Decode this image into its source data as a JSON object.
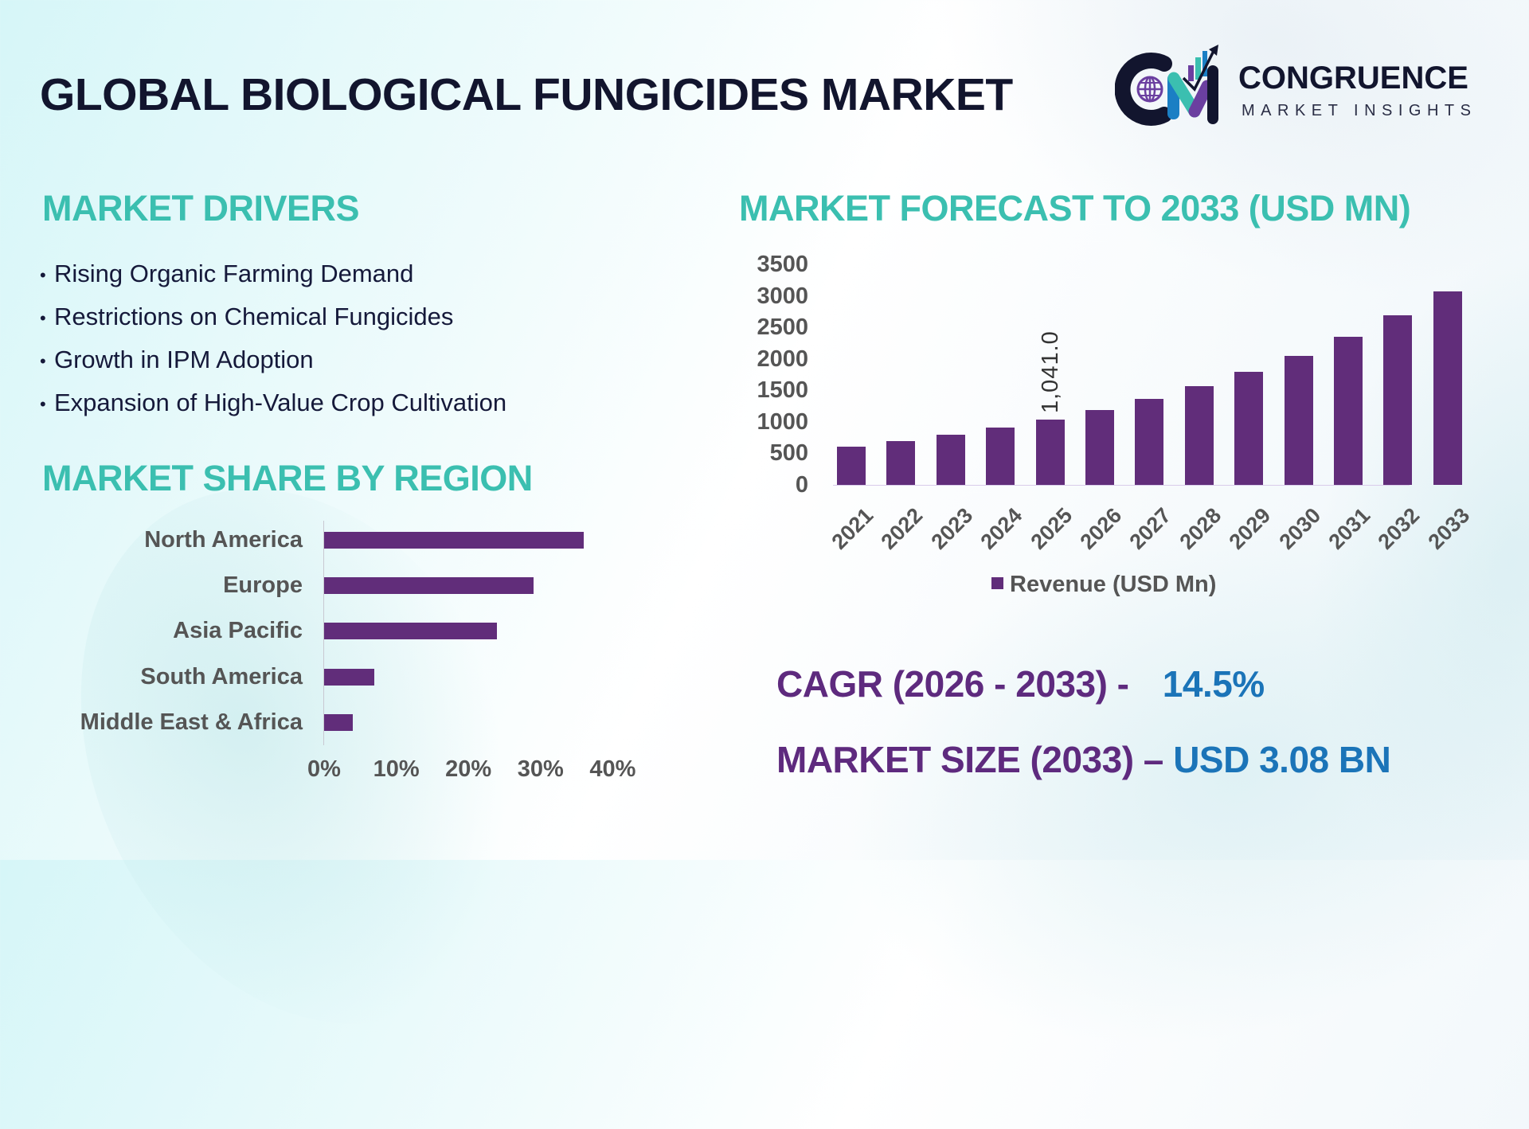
{
  "header": {
    "title": "GLOBAL BIOLOGICAL FUNGICIDES MARKET",
    "logo": {
      "icon": "cm-globe-chart-logo-icon",
      "name": "CONGRUENCE",
      "subtitle": "MARKET INSIGHTS"
    }
  },
  "drivers": {
    "title": "MARKET DRIVERS",
    "bullet": "•",
    "items": [
      "Rising Organic Farming Demand",
      "Restrictions on Chemical Fungicides",
      "Growth in IPM Adoption",
      "Expansion of High-Value Crop Cultivation"
    ]
  },
  "region": {
    "title": "MARKET SHARE BY REGION"
  },
  "forecast": {
    "title": "MARKET FORECAST TO 2033 (USD MN)"
  },
  "stats": {
    "cagr_label": "CAGR (2026 - 2033) -",
    "cagr_value": "14.5%",
    "size_label": "MARKET SIZE (2033) –",
    "size_value": "USD 3.08 BN"
  },
  "colors": {
    "title": "#12152e",
    "section_title": "#3bbfb0",
    "bar": "#612d7a",
    "stat_label": "#5e2a7e",
    "stat_value": "#1b74b8",
    "axis_text": "#555555"
  },
  "chart_data": [
    {
      "type": "bar",
      "orientation": "horizontal",
      "title": "MARKET SHARE BY REGION",
      "categories": [
        "North America",
        "Europe",
        "Asia Pacific",
        "South America",
        "Middle East & Africa"
      ],
      "values": [
        36,
        29,
        24,
        7,
        4
      ],
      "unit": "%",
      "xlabel": "",
      "ylabel": "",
      "xlim": [
        0,
        40
      ],
      "xticks": [
        "0%",
        "10%",
        "20%",
        "30%",
        "40%"
      ],
      "grid": false,
      "legend": null
    },
    {
      "type": "bar",
      "orientation": "vertical",
      "title": "MARKET FORECAST TO 2033 (USD MN)",
      "categories": [
        "2021",
        "2022",
        "2023",
        "2024",
        "2025",
        "2026",
        "2027",
        "2028",
        "2029",
        "2030",
        "2031",
        "2032",
        "2033"
      ],
      "series": [
        {
          "name": "Revenue (USD Mn)",
          "values": [
            606,
            693,
            794,
            909,
            1041,
            1192,
            1365,
            1563,
            1790,
            2049,
            2346,
            2687,
            3076
          ]
        }
      ],
      "data_labels": [
        {
          "category": "2025",
          "text": "1,041.0"
        }
      ],
      "xlabel": "",
      "ylabel": "",
      "ylim": [
        0,
        3500
      ],
      "yticks": [
        "0",
        "500",
        "1000",
        "1500",
        "2000",
        "2500",
        "3000",
        "3500"
      ],
      "grid": false,
      "legend_position": "bottom"
    }
  ]
}
